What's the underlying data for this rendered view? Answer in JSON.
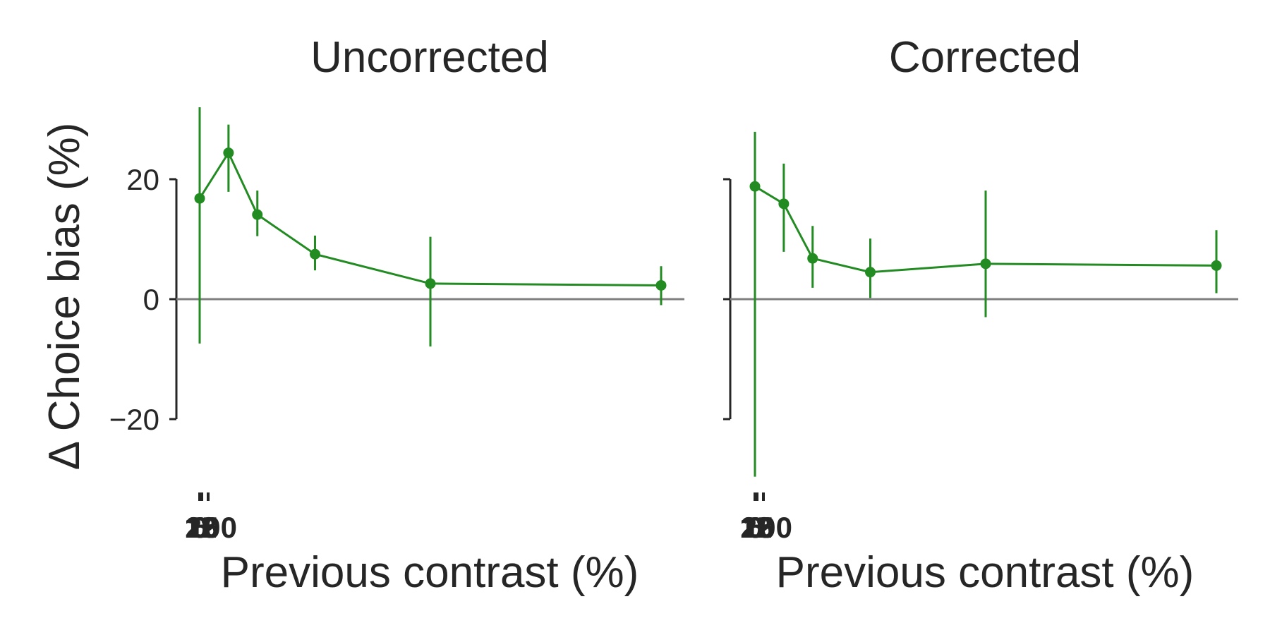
{
  "ylabel": "Δ Choice bias (%)",
  "colors": {
    "series": "#228B22",
    "zero_line": "#808080",
    "axis": "#262626",
    "text": "#262626"
  },
  "chart_data": [
    {
      "type": "line",
      "title": "Uncorrected",
      "xlabel": "Previous contrast (%)",
      "ylabel": "Δ Choice bias (%)",
      "x_ticks": [
        0,
        6,
        12,
        25,
        100
      ],
      "y_ticks": [
        -20,
        0,
        20
      ],
      "ylim": [
        -34,
        33
      ],
      "reference_line": 0,
      "series": [
        {
          "x": [
            0,
            6.25,
            12.5,
            25,
            50,
            100
          ],
          "values": [
            16.8,
            24.4,
            14.1,
            7.5,
            2.6,
            2.3
          ],
          "err_low": [
            -7.4,
            17.9,
            10.5,
            4.8,
            -7.9,
            -1.0
          ],
          "err_high": [
            32.0,
            29.1,
            18.1,
            10.6,
            10.4,
            5.5
          ]
        }
      ]
    },
    {
      "type": "line",
      "title": "Corrected",
      "xlabel": "Previous contrast (%)",
      "ylabel": "",
      "x_ticks": [
        0,
        6,
        12,
        25,
        100
      ],
      "y_ticks": [
        -20,
        0,
        20
      ],
      "ylim": [
        -34,
        33
      ],
      "reference_line": 0,
      "series": [
        {
          "x": [
            0,
            6.25,
            12.5,
            25,
            50,
            100
          ],
          "values": [
            18.8,
            15.9,
            6.8,
            4.5,
            5.9,
            5.6
          ],
          "err_low": [
            -29.6,
            7.9,
            1.9,
            0.2,
            -3.0,
            1.0
          ],
          "err_high": [
            27.9,
            22.6,
            12.2,
            10.1,
            18.1,
            11.5
          ]
        }
      ]
    }
  ]
}
